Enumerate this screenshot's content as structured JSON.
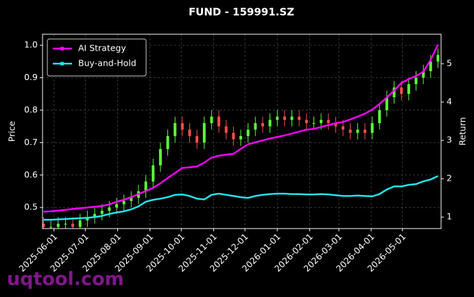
{
  "chart_data": {
    "type": "candlestick-line",
    "title": "FUND - 159991.SZ",
    "ylabel": "Price",
    "y2label": "Return",
    "watermark": "uqtool.com",
    "grid": true,
    "legend_loc": "upper left",
    "up_color": "#5dff3a",
    "down_color": "#ff4d4d",
    "xlim": [
      "2025-05-21",
      "2026-06-07"
    ],
    "xticks": [
      "2025-06-01",
      "2025-07-01",
      "2025-08-01",
      "2025-09-01",
      "2025-10-01",
      "2025-11-01",
      "2025-12-01",
      "2026-01-01",
      "2026-02-01",
      "2026-03-01",
      "2026-04-01",
      "2026-05-01"
    ],
    "ylim": [
      0.435,
      1.034
    ],
    "yticks": [
      0.5,
      0.6,
      0.7,
      0.8,
      0.9,
      {
        "value": 1.0,
        "label": "1.0"
      }
    ],
    "y2lim": [
      0.7,
      5.77
    ],
    "y2ticks": [
      1,
      2,
      3,
      4,
      5
    ],
    "x": [
      "2025-05-22",
      "2025-05-29",
      "2025-06-05",
      "2025-06-12",
      "2025-06-19",
      "2025-06-26",
      "2025-07-03",
      "2025-07-10",
      "2025-07-17",
      "2025-07-24",
      "2025-07-31",
      "2025-08-07",
      "2025-08-14",
      "2025-08-21",
      "2025-08-28",
      "2025-09-04",
      "2025-09-11",
      "2025-09-18",
      "2025-09-25",
      "2025-10-02",
      "2025-10-09",
      "2025-10-16",
      "2025-10-23",
      "2025-10-30",
      "2025-11-06",
      "2025-11-13",
      "2025-11-20",
      "2025-11-27",
      "2025-12-04",
      "2025-12-11",
      "2025-12-18",
      "2025-12-25",
      "2026-01-01",
      "2026-01-08",
      "2026-01-15",
      "2026-01-22",
      "2026-01-29",
      "2026-02-05",
      "2026-02-12",
      "2026-02-19",
      "2026-02-26",
      "2026-03-05",
      "2026-03-12",
      "2026-03-19",
      "2026-03-26",
      "2026-04-02",
      "2026-04-09",
      "2026-04-16",
      "2026-04-23",
      "2026-04-30",
      "2026-05-07",
      "2026-05-14",
      "2026-05-21",
      "2026-05-28",
      "2026-06-04"
    ],
    "open": [
      0.45,
      0.44,
      0.44,
      0.45,
      0.45,
      0.44,
      0.46,
      0.47,
      0.48,
      0.49,
      0.5,
      0.51,
      0.52,
      0.53,
      0.55,
      0.58,
      0.63,
      0.68,
      0.72,
      0.76,
      0.74,
      0.72,
      0.7,
      0.76,
      0.78,
      0.75,
      0.73,
      0.71,
      0.72,
      0.74,
      0.76,
      0.75,
      0.77,
      0.78,
      0.77,
      0.78,
      0.77,
      0.76,
      0.76,
      0.77,
      0.76,
      0.75,
      0.74,
      0.73,
      0.74,
      0.73,
      0.76,
      0.8,
      0.84,
      0.87,
      0.85,
      0.88,
      0.9,
      0.92,
      0.95
    ],
    "high": [
      0.47,
      0.46,
      0.47,
      0.47,
      0.47,
      0.48,
      0.49,
      0.5,
      0.51,
      0.52,
      0.53,
      0.54,
      0.55,
      0.57,
      0.6,
      0.65,
      0.7,
      0.74,
      0.78,
      0.78,
      0.76,
      0.74,
      0.78,
      0.8,
      0.8,
      0.77,
      0.75,
      0.74,
      0.76,
      0.78,
      0.78,
      0.79,
      0.8,
      0.8,
      0.8,
      0.8,
      0.79,
      0.78,
      0.79,
      0.79,
      0.78,
      0.77,
      0.76,
      0.76,
      0.76,
      0.78,
      0.82,
      0.86,
      0.89,
      0.89,
      0.9,
      0.92,
      0.94,
      0.97,
      0.99
    ],
    "low": [
      0.42,
      0.42,
      0.42,
      0.43,
      0.42,
      0.42,
      0.44,
      0.45,
      0.46,
      0.47,
      0.48,
      0.49,
      0.5,
      0.51,
      0.53,
      0.56,
      0.61,
      0.66,
      0.7,
      0.72,
      0.7,
      0.68,
      0.68,
      0.74,
      0.73,
      0.71,
      0.69,
      0.69,
      0.7,
      0.72,
      0.73,
      0.73,
      0.75,
      0.75,
      0.75,
      0.75,
      0.74,
      0.74,
      0.74,
      0.74,
      0.73,
      0.72,
      0.71,
      0.71,
      0.71,
      0.71,
      0.74,
      0.78,
      0.82,
      0.83,
      0.83,
      0.86,
      0.88,
      0.9,
      0.93
    ],
    "close": [
      0.44,
      0.44,
      0.45,
      0.45,
      0.44,
      0.46,
      0.47,
      0.48,
      0.49,
      0.5,
      0.51,
      0.52,
      0.53,
      0.55,
      0.58,
      0.63,
      0.68,
      0.72,
      0.76,
      0.74,
      0.72,
      0.7,
      0.76,
      0.78,
      0.75,
      0.73,
      0.71,
      0.72,
      0.74,
      0.76,
      0.75,
      0.77,
      0.78,
      0.77,
      0.78,
      0.77,
      0.76,
      0.76,
      0.77,
      0.76,
      0.75,
      0.74,
      0.73,
      0.74,
      0.73,
      0.76,
      0.8,
      0.84,
      0.87,
      0.85,
      0.88,
      0.9,
      0.92,
      0.95,
      0.97
    ],
    "series": [
      {
        "name": "AI Strategy",
        "color": "#ff00ff",
        "axis": "y2",
        "values": [
          1.14,
          1.15,
          1.17,
          1.19,
          1.21,
          1.23,
          1.25,
          1.27,
          1.29,
          1.33,
          1.4,
          1.45,
          1.52,
          1.6,
          1.68,
          1.76,
          1.88,
          2.02,
          2.15,
          2.28,
          2.3,
          2.32,
          2.42,
          2.55,
          2.6,
          2.63,
          2.65,
          2.78,
          2.9,
          2.95,
          3.0,
          3.05,
          3.09,
          3.13,
          3.18,
          3.23,
          3.28,
          3.3,
          3.35,
          3.4,
          3.45,
          3.48,
          3.55,
          3.62,
          3.7,
          3.8,
          3.95,
          4.12,
          4.3,
          4.5,
          4.6,
          4.68,
          4.79,
          5.1,
          5.5
        ]
      },
      {
        "name": "Buy-and-Hold",
        "color": "#1ee8f0",
        "axis": "y2",
        "values": [
          0.93,
          0.93,
          0.94,
          0.95,
          0.96,
          0.97,
          0.98,
          1.0,
          1.03,
          1.08,
          1.12,
          1.15,
          1.2,
          1.28,
          1.4,
          1.45,
          1.48,
          1.52,
          1.58,
          1.59,
          1.55,
          1.48,
          1.46,
          1.58,
          1.61,
          1.58,
          1.55,
          1.52,
          1.5,
          1.55,
          1.58,
          1.6,
          1.61,
          1.61,
          1.6,
          1.6,
          1.59,
          1.59,
          1.6,
          1.59,
          1.57,
          1.55,
          1.55,
          1.56,
          1.55,
          1.54,
          1.6,
          1.72,
          1.8,
          1.8,
          1.84,
          1.86,
          1.93,
          1.98,
          2.07
        ]
      }
    ]
  }
}
